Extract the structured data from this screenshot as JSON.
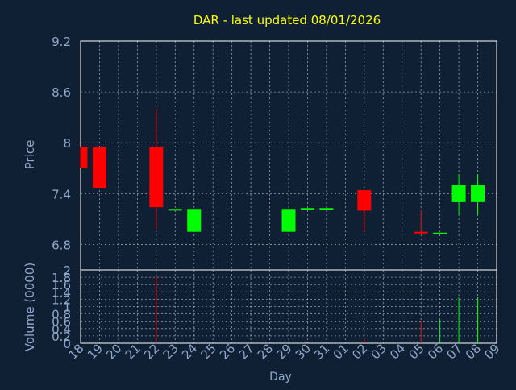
{
  "chart_data": {
    "type": "candlestick",
    "title": "DAR - last updated 08/01/2026",
    "xlabel": "Day",
    "colors": {
      "background": "#0f2034",
      "title": "#ffff00",
      "text": "#8fa8c8",
      "grid": "#ffffff",
      "up": "#00ff00",
      "down": "#ff0000"
    },
    "x_ticks": [
      "18",
      "19",
      "20",
      "21",
      "22",
      "23",
      "24",
      "25",
      "26",
      "27",
      "28",
      "29",
      "30",
      "31",
      "01",
      "02",
      "03",
      "04",
      "05",
      "06",
      "07",
      "08",
      "09"
    ],
    "price_panel": {
      "ylabel": "Price",
      "ylim": [
        6.5,
        9.2
      ],
      "y_ticks": [
        "9.2",
        "8.6",
        "8",
        "7.4",
        "6.8"
      ],
      "y_tick_values": [
        9.2,
        8.6,
        8.0,
        7.4,
        6.8
      ],
      "candles": [
        {
          "day": "18",
          "open": 7.95,
          "high": 7.95,
          "low": 7.7,
          "close": 7.7
        },
        {
          "day": "19",
          "open": 7.95,
          "high": 7.95,
          "low": 7.47,
          "close": 7.47
        },
        {
          "day": "22",
          "open": 7.95,
          "high": 8.4,
          "low": 6.98,
          "close": 7.24
        },
        {
          "day": "23",
          "open": 7.2,
          "high": 7.2,
          "low": 7.2,
          "close": 7.22
        },
        {
          "day": "24",
          "open": 6.95,
          "high": 7.22,
          "low": 6.95,
          "close": 7.22
        },
        {
          "day": "29",
          "open": 6.95,
          "high": 7.22,
          "low": 6.95,
          "close": 7.22
        },
        {
          "day": "30",
          "open": 7.22,
          "high": 7.22,
          "low": 7.22,
          "close": 7.22
        },
        {
          "day": "31",
          "open": 7.22,
          "high": 7.22,
          "low": 7.22,
          "close": 7.22
        },
        {
          "day": "02",
          "open": 7.44,
          "high": 7.44,
          "low": 6.95,
          "close": 7.2
        },
        {
          "day": "05",
          "open": 6.95,
          "high": 7.2,
          "low": 6.93,
          "close": 6.93
        },
        {
          "day": "06",
          "open": 6.93,
          "high": 6.93,
          "low": 6.93,
          "close": 6.93
        },
        {
          "day": "07",
          "open": 7.3,
          "high": 7.63,
          "low": 7.15,
          "close": 7.5
        },
        {
          "day": "08",
          "open": 7.3,
          "high": 7.63,
          "low": 7.15,
          "close": 7.5
        }
      ]
    },
    "volume_panel": {
      "ylabel": "Volume (0000)",
      "ylim": [
        0,
        2
      ],
      "y_ticks": [
        "2",
        "1.8",
        "1.6",
        "1.4",
        "1.2",
        "1",
        "0.8",
        "0.6",
        "0.4",
        "0.2",
        "0"
      ],
      "y_tick_values": [
        2,
        1.8,
        1.6,
        1.4,
        1.2,
        1.0,
        0.8,
        0.6,
        0.4,
        0.2,
        0
      ],
      "bars": [
        {
          "day": "22",
          "value": 1.85,
          "direction": "down"
        },
        {
          "day": "02",
          "value": 0.1,
          "direction": "down"
        },
        {
          "day": "05",
          "value": 0.6,
          "direction": "down"
        },
        {
          "day": "06",
          "value": 0.65,
          "direction": "up"
        },
        {
          "day": "07",
          "value": 1.25,
          "direction": "up"
        },
        {
          "day": "08",
          "value": 1.25,
          "direction": "up"
        }
      ]
    }
  }
}
